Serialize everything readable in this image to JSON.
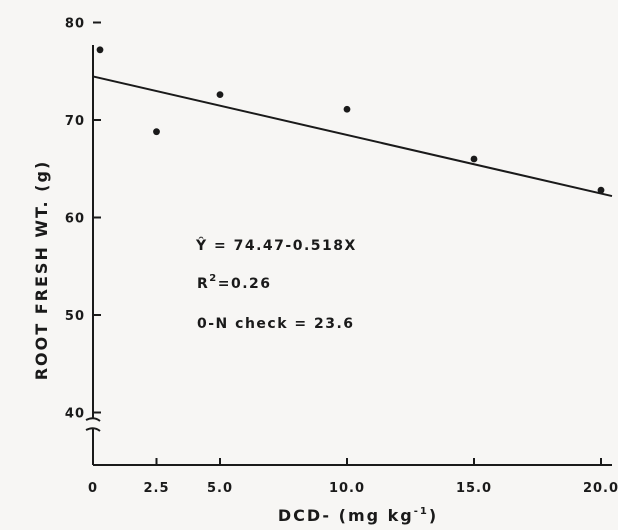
{
  "chart_data": {
    "type": "scatter",
    "xlabel": "DCD- (mg kg",
    "xlabel_exp": "-1",
    "xlabel_close": ")",
    "ylabel": "ROOT FRESH WT. (g)",
    "x_ticks": [
      0,
      2.5,
      5.0,
      10.0,
      15.0,
      20.0
    ],
    "x_tick_labels": [
      "0",
      "2.5",
      "5.0",
      "10.0",
      "15.0",
      "20.0"
    ],
    "y_ticks": [
      40,
      50,
      60,
      70,
      80
    ],
    "y_tick_labels": [
      "40",
      "50",
      "60",
      "70",
      "80"
    ],
    "ylim": [
      40,
      80
    ],
    "y_axis_break": true,
    "series": [
      {
        "x": [
          0,
          2.5,
          5.0,
          10.0,
          15.0,
          20.0
        ],
        "y": [
          77.2,
          68.8,
          72.6,
          71.1,
          66.0,
          62.8
        ]
      }
    ],
    "regression": {
      "intercept": 74.47,
      "slope": -0.518,
      "x_range": [
        0,
        22.5
      ]
    },
    "annotations": {
      "equation_yhat": "Ŷ",
      "equation": " = 74.47-0.518X",
      "r2_label": "R",
      "r2_exp": "2",
      "r2_value": "=0.26",
      "check": "0-N check = 23.6"
    },
    "grid": false,
    "legend": "none"
  }
}
